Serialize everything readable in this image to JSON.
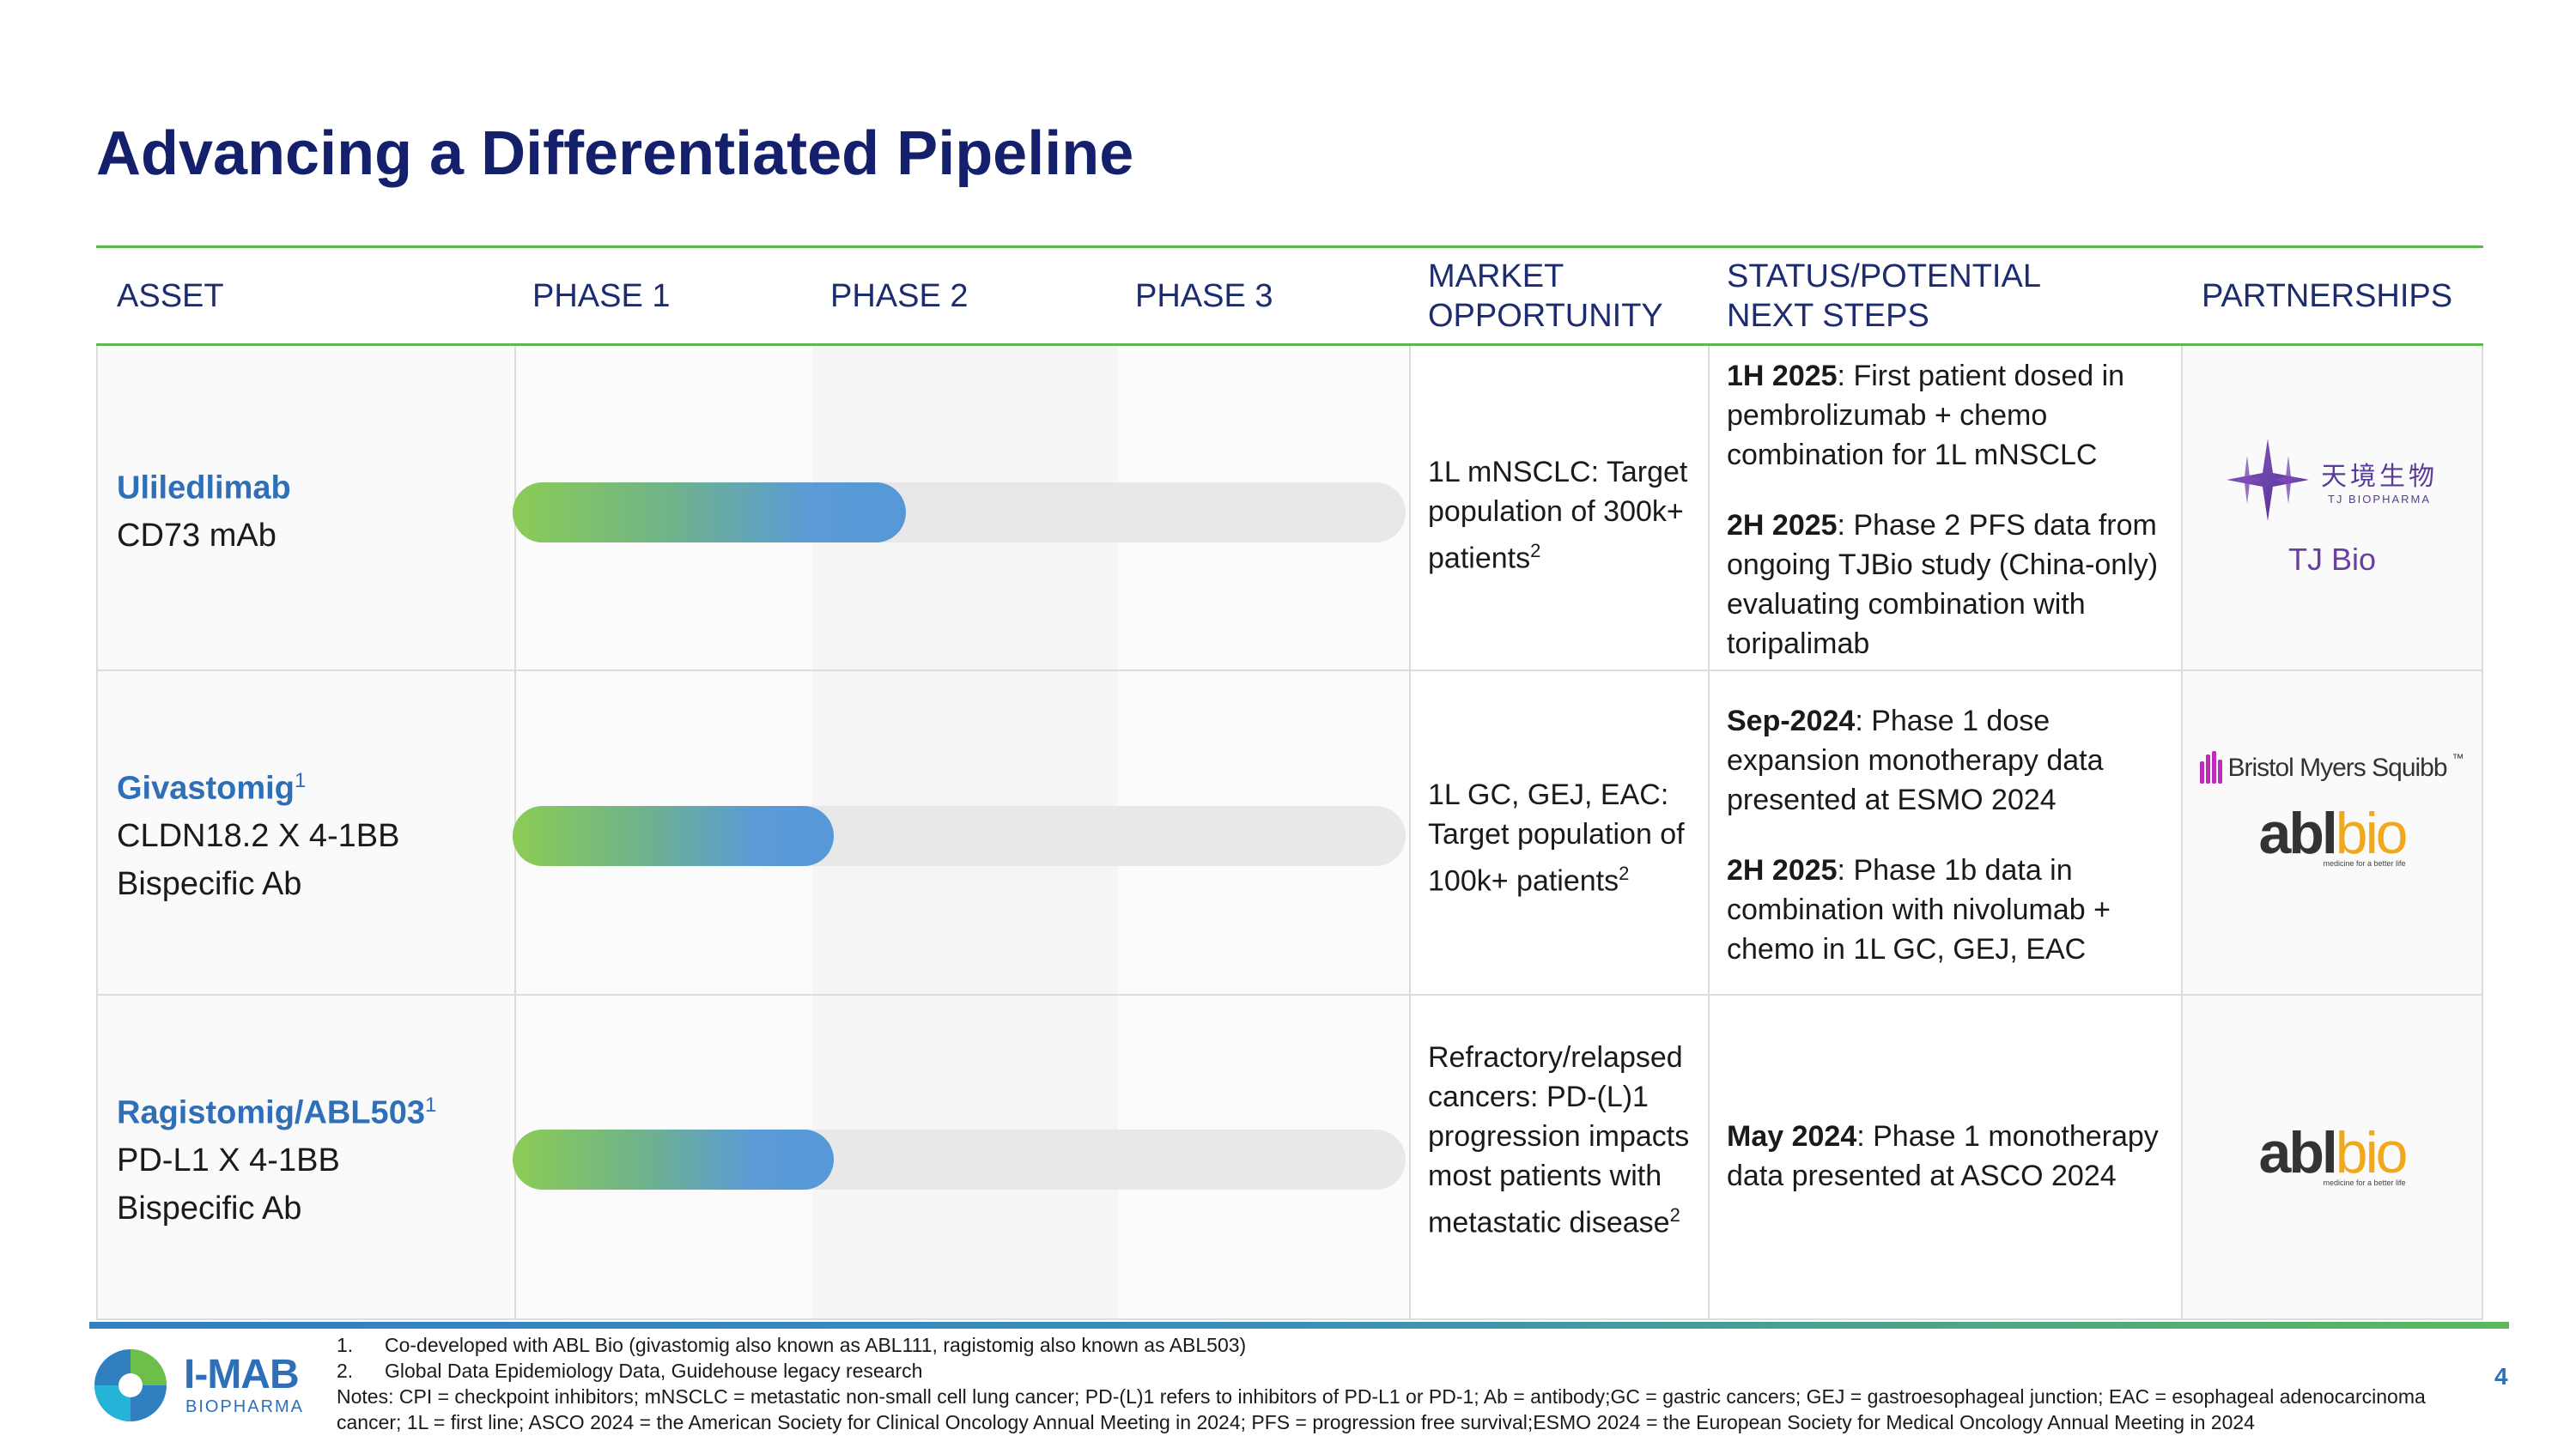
{
  "title": "Advancing a Differentiated Pipeline",
  "headers": {
    "asset": "ASSET",
    "phase1": "PHASE 1",
    "phase2": "PHASE 2",
    "phase3": "PHASE  3",
    "market": "MARKET OPPORTUNITY",
    "status": "STATUS/POTENTIAL NEXT STEPS",
    "partnerships": "PARTNERSHIPS"
  },
  "rows": [
    {
      "name": "Uliledlimab",
      "name_sup": "",
      "desc1": "CD73 mAb",
      "desc2": "",
      "progress": 0.44,
      "market": "1L mNSCLC: Target population of 300k+ patients",
      "market_sup": "2",
      "status": [
        {
          "bold": "1H 2025",
          "text": ": First patient dosed in pembrolizumab + chemo combination for 1L mNSCLC"
        },
        {
          "bold": "2H 2025",
          "text": ": Phase 2 PFS data from ongoing TJBio study (China-only) evaluating combination with toripalimab"
        }
      ],
      "partner_text": "TJ Bio"
    },
    {
      "name": "Givastomig",
      "name_sup": "1",
      "desc1": "CLDN18.2 X 4-1BB",
      "desc2": "Bispecific Ab",
      "progress": 0.36,
      "market": "1L GC, GEJ, EAC: Target population of 100k+ patients",
      "market_sup": "2",
      "status": [
        {
          "bold": "Sep-2024",
          "text": ": Phase 1 dose expansion monotherapy data presented at ESMO 2024"
        },
        {
          "bold": "2H 2025",
          "text": ": Phase 1b data in combination with nivolumab + chemo in 1L GC, GEJ, EAC"
        }
      ],
      "partner_text": ""
    },
    {
      "name": "Ragistomig/ABL503",
      "name_sup": "1",
      "desc1": "PD-L1 X 4-1BB",
      "desc2": "Bispecific Ab",
      "progress": 0.36,
      "market": "Refractory/relapsed cancers: PD-(L)1 progression impacts most patients with metastatic disease",
      "market_sup": "2",
      "status": [
        {
          "bold": "May 2024",
          "text": ": Phase 1 monotherapy data presented at ASCO 2024"
        }
      ],
      "partner_text": ""
    }
  ],
  "logos": {
    "tj_cn": "天境生物",
    "tj_en": "TJ BIOPHARMA",
    "bms": "Bristol Myers Squibb",
    "bms_tm": "™",
    "abl_a": "abl",
    "abl_b": "bio",
    "abl_tag": "medicine for a better life",
    "imab_main": "I-MAB",
    "imab_sub": "BIOPHARMA"
  },
  "footnotes": {
    "n1_num": "1.",
    "n1": "Co-developed with ABL Bio (givastomig also known as ABL111, ragistomig also known as ABL503)",
    "n2_num": "2.",
    "n2": "Global Data Epidemiology Data, Guidehouse legacy research",
    "notes": "Notes: CPI = checkpoint inhibitors; mNSCLC = metastatic non-small cell lung cancer; PD-(L)1 refers to inhibitors of PD-L1 or PD-1; Ab = antibody;GC = gastric cancers; GEJ = gastroesophageal junction; EAC = esophageal adenocarcinoma cancer; 1L = first line; ASCO 2024 = the American Society for Clinical Oncology Annual Meeting in 2024; PFS = progression free survival;ESMO 2024 = the European Society for Medical Oncology Annual Meeting in 2024"
  },
  "page_number": "4",
  "colors": {
    "title": "#14206b",
    "accent_blue": "#2e6fb8",
    "accent_green": "#5fb552",
    "tj_purple": "#6a3fa0"
  }
}
